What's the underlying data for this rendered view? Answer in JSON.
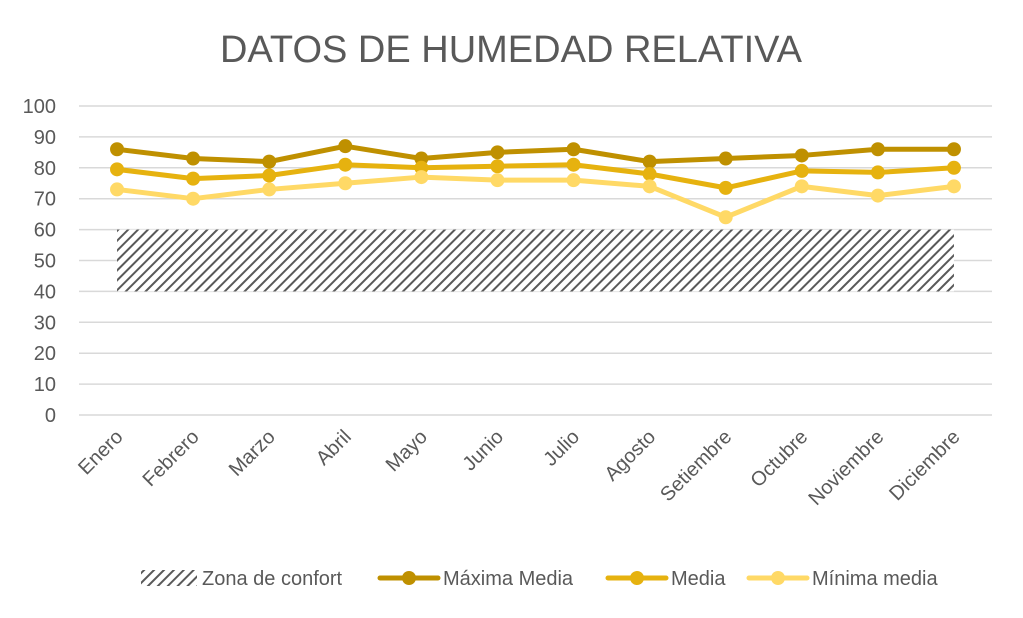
{
  "chart_data": {
    "type": "line",
    "title": "DATOS DE HUMEDAD RELATIVA",
    "xlabel": "",
    "ylabel": "",
    "ylim": [
      0,
      100
    ],
    "yticks": [
      0,
      10,
      20,
      30,
      40,
      50,
      60,
      70,
      80,
      90,
      100
    ],
    "grid": true,
    "legend_position": "bottom",
    "categories": [
      "Enero",
      "Febrero",
      "Marzo",
      "Abril",
      "Mayo",
      "Junio",
      "Julio",
      "Agosto",
      "Setiembre",
      "Octubre",
      "Noviembre",
      "Diciembre"
    ],
    "band": {
      "name": "Zona de confort",
      "low": 40,
      "high": 60,
      "color": "#595959",
      "pattern": "diagonal-hatch"
    },
    "series": [
      {
        "name": "Máxima Media",
        "color": "#BF9000",
        "values": [
          86,
          83,
          82,
          87,
          83,
          85,
          86,
          82,
          83,
          84,
          86,
          86
        ]
      },
      {
        "name": "Media",
        "color": "#E6B20F",
        "values": [
          79.5,
          76.5,
          77.5,
          81,
          80,
          80.5,
          81,
          78,
          73.5,
          79,
          78.5,
          80
        ]
      },
      {
        "name": "Mínima media",
        "color": "#FFD966",
        "values": [
          73,
          70,
          73,
          75,
          77,
          76,
          76,
          74,
          64,
          74,
          71,
          74
        ]
      }
    ]
  }
}
